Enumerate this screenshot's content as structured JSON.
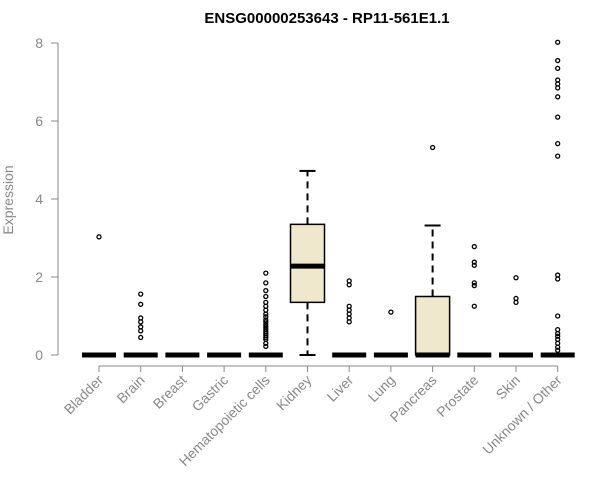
{
  "chart_data": {
    "type": "box",
    "title": "ENSG00000253643 - RP11-561E1.1",
    "ylabel": "Expression",
    "xlabel": "",
    "ylim": [
      0,
      8
    ],
    "yticks": [
      0,
      2,
      4,
      6,
      8
    ],
    "box_fill": "#efe8cd",
    "categories": [
      "Bladder",
      "Brain",
      "Breast",
      "Gastric",
      "Hematopoietic cells",
      "Kidney",
      "Liver",
      "Lung",
      "Pancreas",
      "Prostate",
      "Skin",
      "Unknown / Other"
    ],
    "boxes": [
      {
        "category": "Bladder",
        "q1": 0,
        "median": 0,
        "q3": 0,
        "whisker_low": 0,
        "whisker_high": 0,
        "outliers": [
          3.03
        ]
      },
      {
        "category": "Brain",
        "q1": 0,
        "median": 0,
        "q3": 0,
        "whisker_low": 0,
        "whisker_high": 0,
        "outliers": [
          1.56,
          1.3,
          0.95,
          0.85,
          0.72,
          0.62,
          0.45
        ]
      },
      {
        "category": "Breast",
        "q1": 0,
        "median": 0,
        "q3": 0,
        "whisker_low": 0,
        "whisker_high": 0,
        "outliers": []
      },
      {
        "category": "Gastric",
        "q1": 0,
        "median": 0,
        "q3": 0,
        "whisker_low": 0,
        "whisker_high": 0,
        "outliers": []
      },
      {
        "category": "Hematopoietic cells",
        "q1": 0,
        "median": 0,
        "q3": 0,
        "whisker_low": 0,
        "whisker_high": 0,
        "outliers": [
          2.1,
          1.85,
          1.65,
          1.5,
          1.35,
          1.25,
          1.15,
          1.05,
          0.98,
          0.9,
          0.85,
          0.78,
          0.72,
          0.66,
          0.6,
          0.55,
          0.5,
          0.45,
          0.4,
          0.3,
          0.22
        ]
      },
      {
        "category": "Kidney",
        "q1": 1.35,
        "median": 2.28,
        "q3": 3.35,
        "whisker_low": 0,
        "whisker_high": 4.72,
        "outliers": []
      },
      {
        "category": "Liver",
        "q1": 0,
        "median": 0,
        "q3": 0,
        "whisker_low": 0,
        "whisker_high": 0,
        "outliers": [
          1.9,
          1.8,
          1.25,
          1.15,
          1.05,
          0.95,
          0.85
        ]
      },
      {
        "category": "Lung",
        "q1": 0,
        "median": 0,
        "q3": 0,
        "whisker_low": 0,
        "whisker_high": 0,
        "outliers": [
          1.1
        ]
      },
      {
        "category": "Pancreas",
        "q1": 0,
        "median": 0,
        "q3": 1.5,
        "whisker_low": 0,
        "whisker_high": 3.32,
        "outliers": [
          5.32
        ]
      },
      {
        "category": "Prostate",
        "q1": 0,
        "median": 0,
        "q3": 0,
        "whisker_low": 0,
        "whisker_high": 0,
        "outliers": [
          2.78,
          2.38,
          2.3,
          1.85,
          1.78,
          1.25
        ]
      },
      {
        "category": "Skin",
        "q1": 0,
        "median": 0,
        "q3": 0,
        "whisker_low": 0,
        "whisker_high": 0,
        "outliers": [
          1.98,
          1.45,
          1.35
        ]
      },
      {
        "category": "Unknown / Other",
        "q1": 0,
        "median": 0,
        "q3": 0,
        "whisker_low": 0,
        "whisker_high": 0,
        "outliers": [
          8.02,
          7.55,
          7.35,
          7.05,
          6.95,
          6.85,
          6.62,
          6.1,
          5.42,
          5.1,
          2.05,
          1.95,
          1.0,
          0.65,
          0.55,
          0.48,
          0.4,
          0.3,
          0.2,
          0.12
        ]
      }
    ]
  }
}
